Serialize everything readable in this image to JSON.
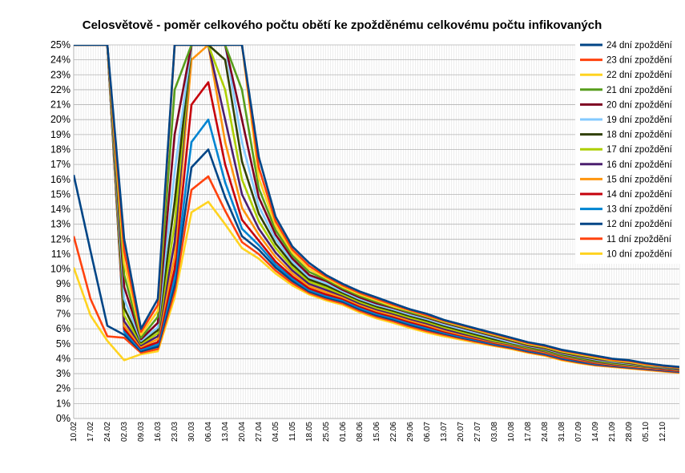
{
  "chart_data": {
    "type": "line",
    "title": "Celosvětově - poměr celkového počtu obětí ke zpožděnému celkovému počtu infikovaných",
    "xlabel": "",
    "ylabel": "",
    "ylim": [
      0,
      25
    ],
    "y_ticks": [
      "0%",
      "1%",
      "2%",
      "3%",
      "4%",
      "5%",
      "6%",
      "7%",
      "8%",
      "9%",
      "10%",
      "11%",
      "12%",
      "13%",
      "14%",
      "15%",
      "16%",
      "17%",
      "18%",
      "19%",
      "20%",
      "21%",
      "22%",
      "23%",
      "24%",
      "25%"
    ],
    "x_ticks": [
      "10.02",
      "17.02",
      "24.02",
      "02.03",
      "09.03",
      "16.03",
      "23.03",
      "30.03",
      "06.04",
      "13.04",
      "20.04",
      "27.04",
      "04.05",
      "11.05",
      "18.05",
      "25.05",
      "01.06",
      "08.06",
      "15.06",
      "22.06",
      "29.06",
      "06.07",
      "13.07",
      "20.07",
      "27.07",
      "03.08",
      "10.08",
      "17.08",
      "24.08",
      "31.08",
      "07.09",
      "14.09",
      "21.09",
      "28.09",
      "05.10",
      "12.10"
    ],
    "grid": true,
    "legend_position": "right",
    "x": [
      "10.02",
      "17.02",
      "24.02",
      "02.03",
      "09.03",
      "16.03",
      "23.03",
      "30.03",
      "06.04",
      "13.04",
      "20.04",
      "27.04",
      "04.05",
      "11.05",
      "18.05",
      "25.05",
      "01.06",
      "08.06",
      "15.06",
      "22.06",
      "29.06",
      "06.07",
      "13.07",
      "20.07",
      "27.07",
      "03.08",
      "10.08",
      "17.08",
      "24.08",
      "31.08",
      "07.09",
      "14.09",
      "21.09",
      "28.09",
      "05.10",
      "12.10",
      "17.10"
    ],
    "series": [
      {
        "name": "24 dní zpoždění",
        "color": "#004586",
        "values": [
          25,
          25,
          25,
          12.0,
          6.0,
          8.0,
          25,
          25,
          25,
          25,
          25,
          17.5,
          13.5,
          11.5,
          10.4,
          9.6,
          9.0,
          8.5,
          8.1,
          7.7,
          7.3,
          7.0,
          6.6,
          6.3,
          6.0,
          5.7,
          5.4,
          5.1,
          4.9,
          4.6,
          4.4,
          4.2,
          4.0,
          3.9,
          3.7,
          3.55,
          3.45
        ]
      },
      {
        "name": "23 dní zpoždění",
        "color": "#ff420e",
        "values": [
          25,
          25,
          25,
          11.2,
          5.8,
          7.6,
          25,
          25,
          25,
          25,
          25,
          16.8,
          13.2,
          11.3,
          10.2,
          9.5,
          8.9,
          8.4,
          8.0,
          7.6,
          7.25,
          6.9,
          6.55,
          6.25,
          5.95,
          5.65,
          5.35,
          5.05,
          4.85,
          4.55,
          4.35,
          4.15,
          3.95,
          3.85,
          3.65,
          3.52,
          3.42
        ]
      },
      {
        "name": "22 dní zpoždění",
        "color": "#ffd320",
        "values": [
          25,
          25,
          25,
          10.4,
          5.6,
          7.2,
          25,
          25,
          25,
          25,
          25,
          16.1,
          12.9,
          11.1,
          10.0,
          9.4,
          8.8,
          8.3,
          7.9,
          7.5,
          7.2,
          6.85,
          6.5,
          6.2,
          5.9,
          5.6,
          5.3,
          5.0,
          4.8,
          4.5,
          4.3,
          4.1,
          3.9,
          3.8,
          3.6,
          3.5,
          3.4
        ]
      },
      {
        "name": "21 dní zpoždění",
        "color": "#579d1c",
        "values": [
          25,
          25,
          25,
          9.6,
          5.4,
          6.8,
          22,
          25,
          25,
          25,
          22,
          15.4,
          12.6,
          10.9,
          9.8,
          9.3,
          8.7,
          8.2,
          7.8,
          7.45,
          7.1,
          6.8,
          6.45,
          6.15,
          5.85,
          5.55,
          5.25,
          4.95,
          4.75,
          4.45,
          4.25,
          4.05,
          3.88,
          3.76,
          3.58,
          3.48,
          3.38
        ]
      },
      {
        "name": "20 dní zpoždění",
        "color": "#7e0021",
        "values": [
          25,
          25,
          25,
          8.8,
          5.3,
          6.4,
          19,
          25,
          25,
          25,
          20,
          14.8,
          12.3,
          10.7,
          9.6,
          9.2,
          8.6,
          8.1,
          7.7,
          7.4,
          7.05,
          6.75,
          6.4,
          6.1,
          5.8,
          5.5,
          5.2,
          4.9,
          4.7,
          4.4,
          4.2,
          4.0,
          3.85,
          3.72,
          3.56,
          3.46,
          3.36
        ]
      },
      {
        "name": "19 dní zpoždění",
        "color": "#83caff",
        "values": [
          25,
          25,
          25,
          8.0,
          5.2,
          6.1,
          16.5,
          25,
          25,
          25,
          18.5,
          14.2,
          12.0,
          10.5,
          9.45,
          9.05,
          8.5,
          8.0,
          7.6,
          7.3,
          6.95,
          6.65,
          6.3,
          6.0,
          5.7,
          5.4,
          5.1,
          4.85,
          4.65,
          4.35,
          4.15,
          3.95,
          3.8,
          3.68,
          3.54,
          3.44,
          3.34
        ]
      },
      {
        "name": "18 dní zpoždění",
        "color": "#314004",
        "values": [
          25,
          25,
          25,
          7.4,
          5.1,
          5.9,
          14.5,
          25,
          25,
          24,
          17.2,
          13.7,
          11.7,
          10.3,
          9.3,
          8.9,
          8.4,
          7.9,
          7.5,
          7.2,
          6.85,
          6.55,
          6.2,
          5.9,
          5.6,
          5.3,
          5.05,
          4.8,
          4.6,
          4.3,
          4.1,
          3.9,
          3.75,
          3.64,
          3.52,
          3.42,
          3.32
        ]
      },
      {
        "name": "17 dní zpoždění",
        "color": "#aecf00",
        "values": [
          25,
          25,
          25,
          6.9,
          5.0,
          5.7,
          13.0,
          25,
          25,
          22,
          16.0,
          13.2,
          11.4,
          10.1,
          9.15,
          8.75,
          8.3,
          7.8,
          7.4,
          7.1,
          6.75,
          6.45,
          6.1,
          5.8,
          5.5,
          5.2,
          5.0,
          4.75,
          4.55,
          4.25,
          4.05,
          3.85,
          3.7,
          3.6,
          3.5,
          3.4,
          3.3
        ]
      },
      {
        "name": "16 dní zpoždění",
        "color": "#4b1f6f",
        "values": [
          25,
          25,
          25,
          6.5,
          4.9,
          5.5,
          11.8,
          25,
          25,
          20,
          15.0,
          12.7,
          11.1,
          9.9,
          9.0,
          8.6,
          8.2,
          7.7,
          7.3,
          7.0,
          6.65,
          6.35,
          6.0,
          5.7,
          5.42,
          5.15,
          4.95,
          4.7,
          4.5,
          4.2,
          4.0,
          3.8,
          3.66,
          3.56,
          3.46,
          3.36,
          3.26
        ]
      },
      {
        "name": "15 dní zpoždění",
        "color": "#ff950e",
        "values": [
          25,
          25,
          25,
          6.2,
          4.8,
          5.3,
          10.8,
          24,
          25,
          18.5,
          14.1,
          12.3,
          10.8,
          9.7,
          8.85,
          8.45,
          8.1,
          7.6,
          7.2,
          6.9,
          6.55,
          6.25,
          5.9,
          5.62,
          5.36,
          5.1,
          4.9,
          4.65,
          4.45,
          4.15,
          3.95,
          3.75,
          3.62,
          3.52,
          3.42,
          3.32,
          3.22
        ]
      },
      {
        "name": "14 dní zpoždění",
        "color": "#c5000b",
        "values": [
          25,
          25,
          25,
          6.0,
          4.7,
          5.1,
          10.0,
          21,
          22.5,
          17.0,
          13.3,
          11.9,
          10.5,
          9.5,
          8.7,
          8.3,
          8.0,
          7.5,
          7.1,
          6.8,
          6.45,
          6.15,
          5.82,
          5.55,
          5.3,
          5.05,
          4.85,
          4.6,
          4.4,
          4.1,
          3.9,
          3.7,
          3.58,
          3.48,
          3.38,
          3.28,
          3.18
        ]
      },
      {
        "name": "13 dní zpoždění",
        "color": "#0084d1",
        "values": [
          25,
          25,
          25,
          5.8,
          4.6,
          4.95,
          9.4,
          18.5,
          20,
          15.8,
          12.7,
          11.6,
          10.3,
          9.35,
          8.6,
          8.2,
          7.9,
          7.4,
          7.0,
          6.7,
          6.35,
          6.05,
          5.75,
          5.48,
          5.24,
          5.0,
          4.8,
          4.55,
          4.35,
          4.05,
          3.85,
          3.66,
          3.55,
          3.45,
          3.35,
          3.25,
          3.15
        ]
      },
      {
        "name": "12 dní zpoždění",
        "color": "#004586",
        "values": [
          16.3,
          11.2,
          6.2,
          5.6,
          4.5,
          4.8,
          8.9,
          16.8,
          18.0,
          14.8,
          12.2,
          11.3,
          10.1,
          9.2,
          8.5,
          8.1,
          7.8,
          7.3,
          6.9,
          6.6,
          6.25,
          5.95,
          5.68,
          5.42,
          5.18,
          4.95,
          4.75,
          4.5,
          4.3,
          4.0,
          3.8,
          3.62,
          3.52,
          3.42,
          3.32,
          3.22,
          3.12
        ]
      },
      {
        "name": "11 dní zpoždění",
        "color": "#ff420e",
        "values": [
          12.2,
          8.0,
          5.5,
          5.4,
          4.4,
          4.65,
          8.5,
          15.3,
          16.2,
          13.9,
          11.8,
          11.0,
          9.9,
          9.05,
          8.4,
          8.0,
          7.7,
          7.2,
          6.8,
          6.5,
          6.15,
          5.85,
          5.6,
          5.36,
          5.12,
          4.9,
          4.7,
          4.45,
          4.25,
          3.95,
          3.75,
          3.58,
          3.48,
          3.38,
          3.28,
          3.18,
          3.08
        ]
      },
      {
        "name": "10 dní zpoždění",
        "color": "#ffd320",
        "values": [
          10.1,
          6.9,
          5.2,
          3.9,
          4.3,
          4.5,
          8.1,
          13.8,
          14.5,
          13.0,
          11.4,
          10.7,
          9.7,
          8.9,
          8.3,
          7.9,
          7.6,
          7.1,
          6.7,
          6.4,
          6.05,
          5.75,
          5.5,
          5.28,
          5.05,
          4.85,
          4.65,
          4.4,
          4.2,
          3.9,
          3.7,
          3.55,
          3.45,
          3.35,
          3.25,
          3.15,
          3.05
        ]
      }
    ]
  }
}
